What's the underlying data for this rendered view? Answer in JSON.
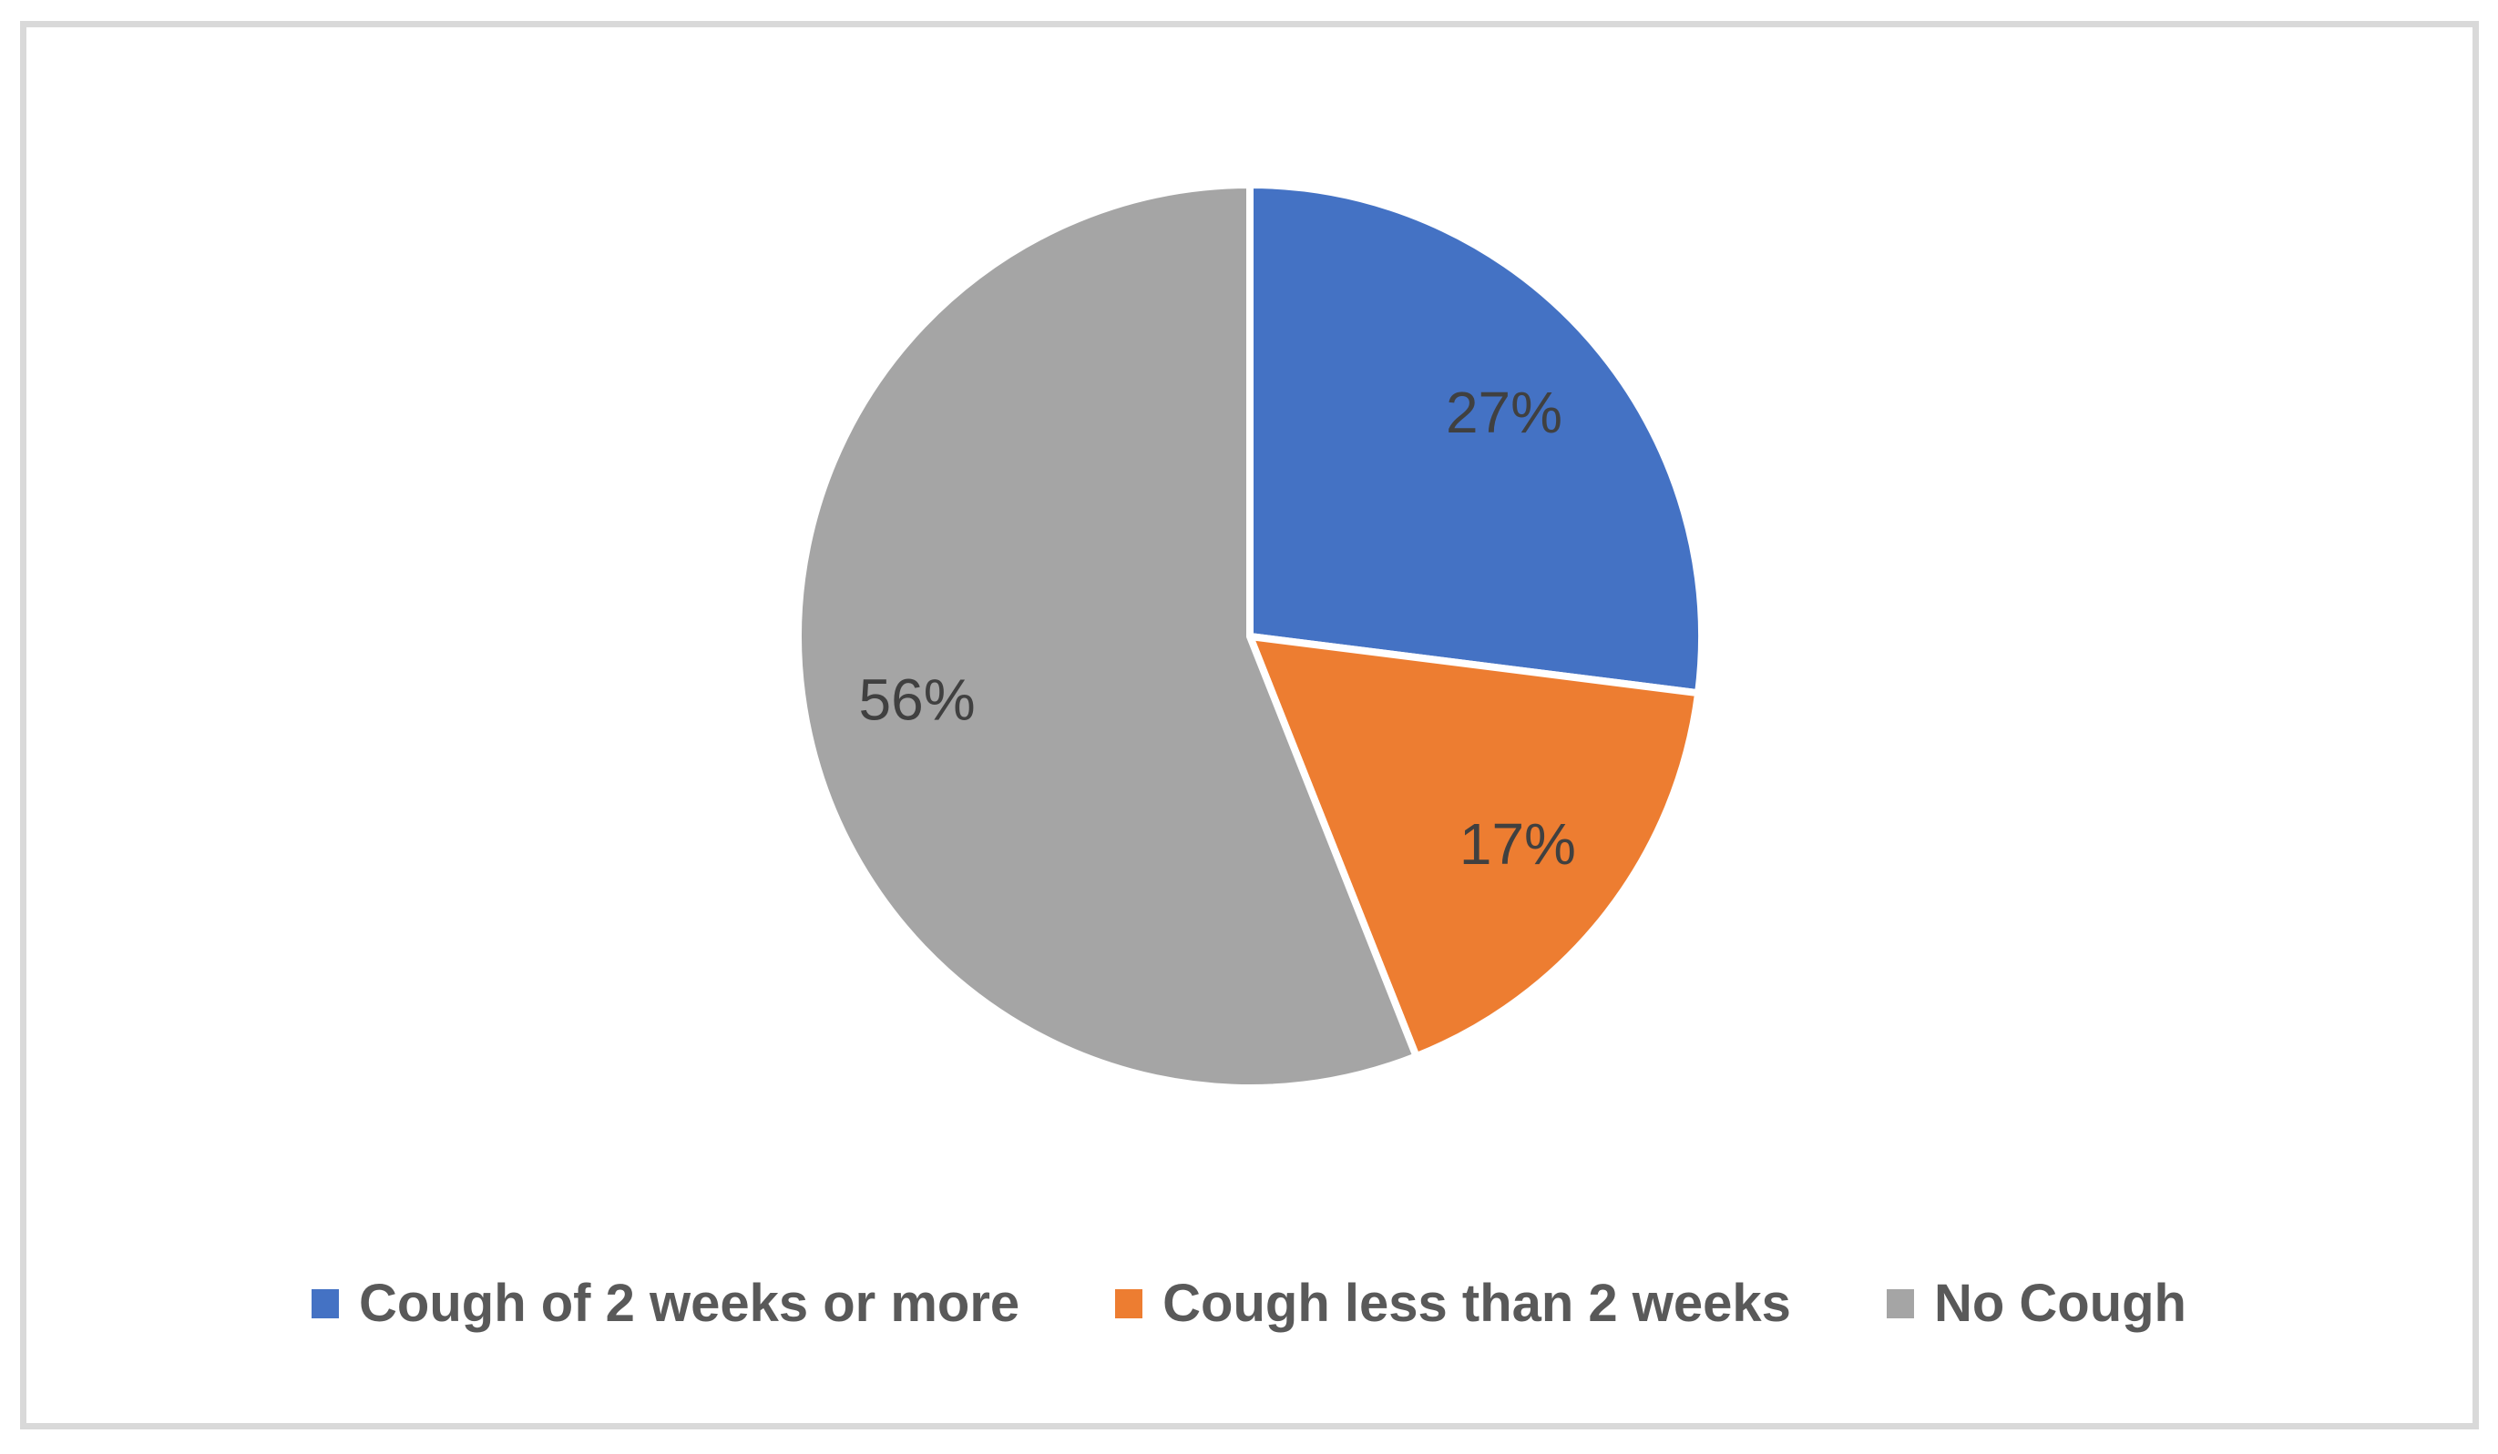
{
  "chart_data": {
    "type": "pie",
    "categories": [
      "Cough of 2 weeks or more",
      "Cough less than 2 weeks",
      "No Cough"
    ],
    "values": [
      27,
      17,
      56
    ],
    "slice_labels": [
      "27%",
      "17%",
      "56%"
    ],
    "colors": [
      "#4472C4",
      "#ED7D31",
      "#A5A5A5"
    ],
    "title": "",
    "start_angle_deg": 0,
    "direction": "clockwise",
    "label_color": "#404040",
    "separator_color": "#FFFFFF",
    "legend_position": "bottom",
    "legend_text_color": "#595959",
    "frame_border_color": "#D9D9D9"
  },
  "legend": {
    "items": [
      {
        "label": "Cough of 2 weeks or more"
      },
      {
        "label": "Cough less than 2 weeks"
      },
      {
        "label": "No Cough"
      }
    ]
  }
}
